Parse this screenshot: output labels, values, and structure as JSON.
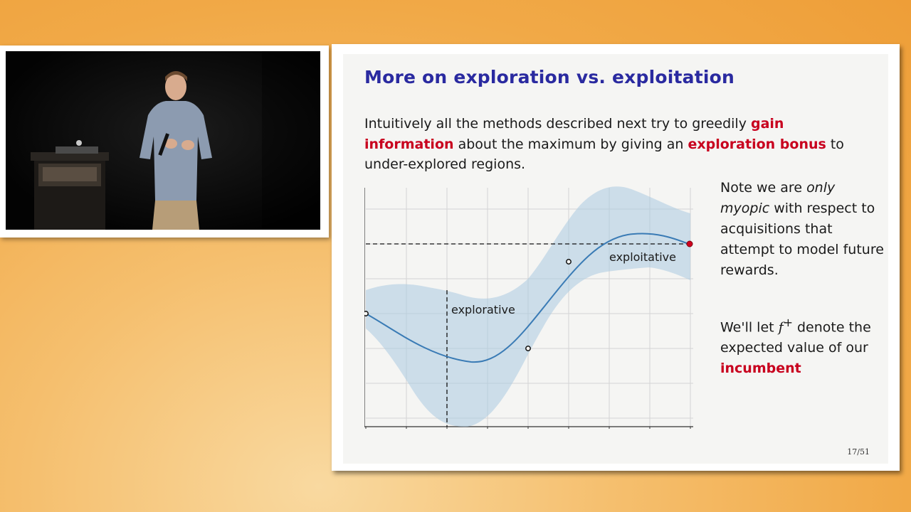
{
  "slide": {
    "title": "More on exploration vs. exploitation",
    "intro": {
      "part1": "Intuitively all the methods described next try to greedily ",
      "highlight1": "gain information",
      "part2": " about the maximum by giving an ",
      "highlight2": "exploration bonus",
      "part3": " to under-explored regions."
    },
    "note": {
      "part1": "Note we are ",
      "italic": "only myopic",
      "part2": " with respect to acquisitions that attempt to model future rewards."
    },
    "note2": {
      "part1": "We'll let ",
      "symbol": "f",
      "superscript": "+",
      "part2": " denote the expected value of our ",
      "highlight": "incumbent"
    },
    "page_number": "17/51"
  },
  "chart_data": {
    "type": "line",
    "title": "",
    "xlabel": "",
    "ylabel": "",
    "annotations": [
      "explorative",
      "exploitative"
    ],
    "grid": true,
    "colors": {
      "mean": "#3a7bb5",
      "band": "#a9c8e0",
      "incumbent": "#d0001e"
    }
  },
  "video": {
    "description_icon": "speaker-video-icon"
  }
}
